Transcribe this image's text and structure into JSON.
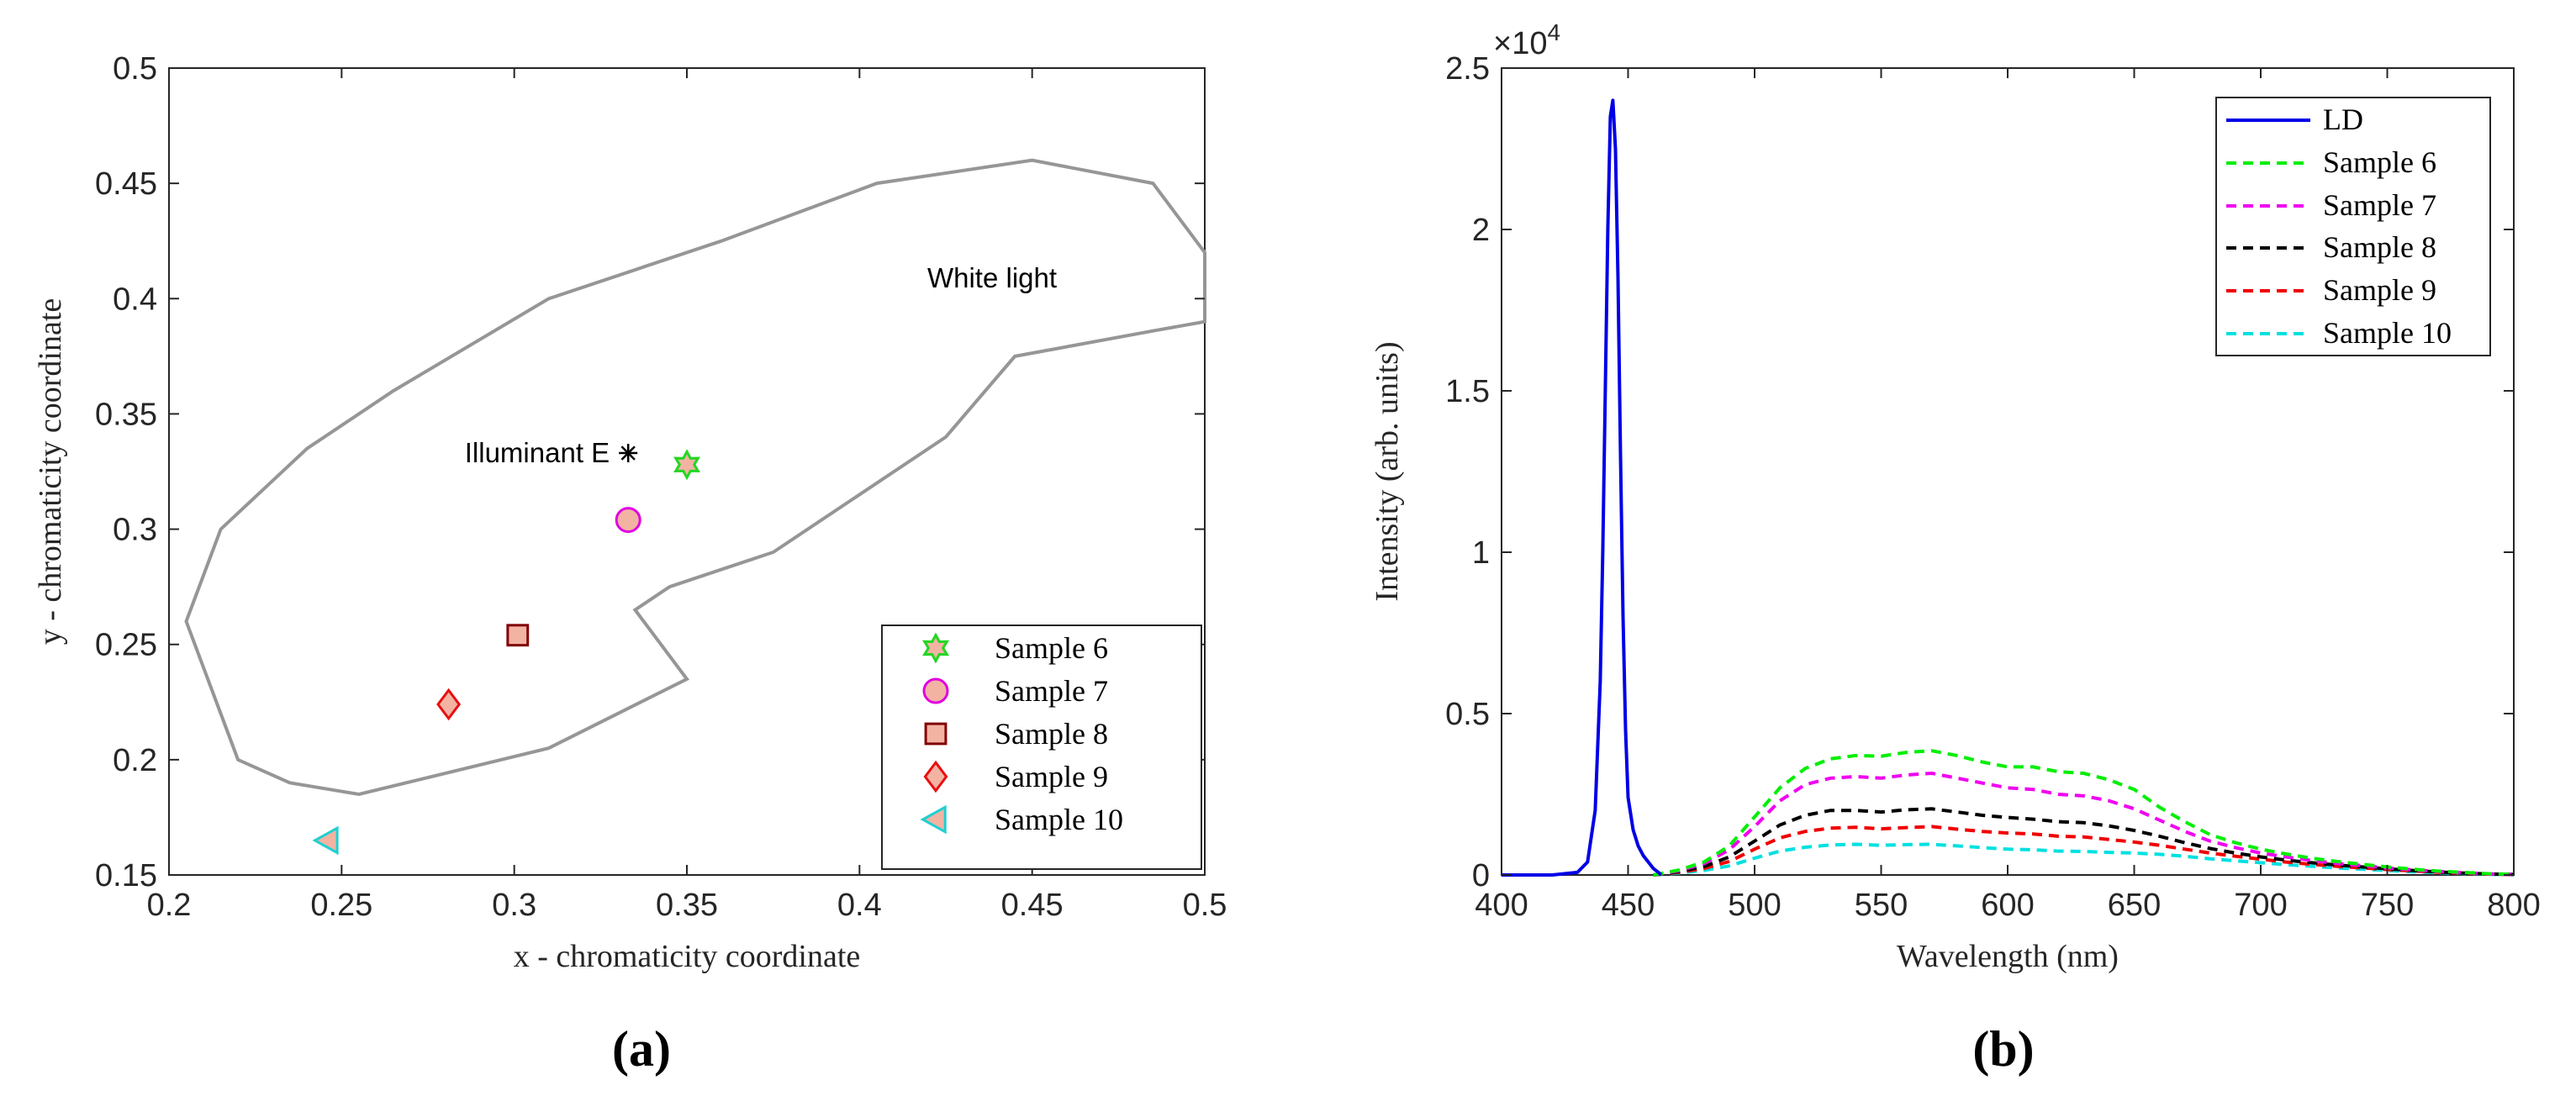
{
  "chart_data": [
    {
      "panel": "a",
      "type": "scatter",
      "xlabel": "x - chromaticity coordinate",
      "ylabel": "y - chromaticity coordinate",
      "xlim": [
        0.2,
        0.5
      ],
      "ylim": [
        0.15,
        0.5
      ],
      "xticks": [
        "0.2",
        "0.25",
        "0.3",
        "0.35",
        "0.4",
        "0.45",
        "0.5"
      ],
      "yticks": [
        "0.15",
        "0.2",
        "0.25",
        "0.3",
        "0.35",
        "0.4",
        "0.45",
        "0.5"
      ],
      "region_label": "White light",
      "region_color": "#969696",
      "region_boundary": [
        [
          0.5,
          0.42
        ],
        [
          0.485,
          0.45
        ],
        [
          0.45,
          0.46
        ],
        [
          0.405,
          0.45
        ],
        [
          0.36,
          0.425
        ],
        [
          0.31,
          0.4
        ],
        [
          0.265,
          0.36
        ],
        [
          0.24,
          0.335
        ],
        [
          0.215,
          0.3
        ],
        [
          0.205,
          0.26
        ],
        [
          0.22,
          0.2
        ],
        [
          0.235,
          0.19
        ],
        [
          0.255,
          0.185
        ],
        [
          0.31,
          0.205
        ],
        [
          0.35,
          0.235
        ],
        [
          0.335,
          0.265
        ],
        [
          0.345,
          0.275
        ],
        [
          0.375,
          0.29
        ],
        [
          0.425,
          0.34
        ],
        [
          0.445,
          0.375
        ],
        [
          0.485,
          0.386
        ],
        [
          0.5,
          0.39
        ]
      ],
      "reference_point": {
        "label": "Illuminant E",
        "x": 0.333,
        "y": 0.333,
        "symbol": "asterisk"
      },
      "series": [
        {
          "name": "Sample 6",
          "x": 0.35,
          "y": 0.328,
          "marker": "hexagram",
          "edge": "#22d622",
          "face": "#f2b3a3"
        },
        {
          "name": "Sample 7",
          "x": 0.333,
          "y": 0.304,
          "marker": "circle",
          "edge": "#e000e0",
          "face": "#f2b3a3"
        },
        {
          "name": "Sample 8",
          "x": 0.301,
          "y": 0.254,
          "marker": "square",
          "edge": "#800000",
          "face": "#f2b3a3"
        },
        {
          "name": "Sample 9",
          "x": 0.281,
          "y": 0.224,
          "marker": "diamond",
          "edge": "#e81010",
          "face": "#f2b3a3"
        },
        {
          "name": "Sample 10",
          "x": 0.246,
          "y": 0.165,
          "marker": "triangle-left",
          "edge": "#20d0d0",
          "face": "#f2b3a3"
        }
      ],
      "legend_position": "bottom-right"
    },
    {
      "panel": "b",
      "type": "line",
      "xlabel": "Wavelength (nm)",
      "ylabel": "Intensity (arb. units)",
      "xlim": [
        400,
        800
      ],
      "ylim": [
        0,
        25000
      ],
      "xticks": [
        "400",
        "450",
        "500",
        "550",
        "600",
        "650",
        "700",
        "750",
        "800"
      ],
      "yticks": [
        "0",
        "0.5",
        "1",
        "1.5",
        "2",
        "2.5"
      ],
      "exponent_label": "×10",
      "exponent_power": "4",
      "x": [
        460,
        470,
        480,
        490,
        500,
        510,
        520,
        530,
        540,
        550,
        560,
        570,
        580,
        590,
        600,
        610,
        620,
        630,
        640,
        650,
        660,
        670,
        680,
        690,
        700,
        710,
        720,
        730,
        740,
        750,
        760,
        770,
        780,
        790,
        800
      ],
      "ld_series": {
        "name": "LD",
        "color": "#0000e6",
        "style": "solid",
        "x": [
          400,
          420,
          430,
          434,
          437,
          439,
          440,
          441,
          442,
          443,
          444,
          445,
          446,
          447,
          448,
          449,
          450,
          452,
          454,
          456,
          458,
          460,
          462,
          463
        ],
        "y": [
          0,
          0,
          80,
          400,
          2000,
          6000,
          10000,
          15000,
          20000,
          23500,
          24000,
          22500,
          18500,
          13000,
          8000,
          4500,
          2400,
          1400,
          900,
          600,
          400,
          200,
          80,
          0
        ]
      },
      "series": [
        {
          "name": "Sample 6",
          "color": "#00ee00",
          "style": "dashed",
          "values": [
            0,
            150,
            400,
            900,
            1800,
            2700,
            3300,
            3600,
            3700,
            3680,
            3800,
            3850,
            3700,
            3500,
            3350,
            3350,
            3200,
            3150,
            2950,
            2650,
            2100,
            1650,
            1250,
            1000,
            800,
            650,
            520,
            420,
            330,
            250,
            180,
            120,
            80,
            40,
            20
          ]
        },
        {
          "name": "Sample 7",
          "color": "#f000f0",
          "style": "dashed",
          "values": [
            0,
            130,
            350,
            780,
            1500,
            2300,
            2800,
            3000,
            3050,
            3000,
            3100,
            3150,
            3000,
            2850,
            2700,
            2650,
            2500,
            2450,
            2300,
            2050,
            1700,
            1350,
            1050,
            850,
            680,
            560,
            450,
            360,
            290,
            220,
            160,
            110,
            70,
            35,
            15
          ]
        },
        {
          "name": "Sample 8",
          "color": "#000000",
          "style": "dashed",
          "values": [
            0,
            100,
            260,
            560,
            1050,
            1550,
            1850,
            2000,
            2000,
            1950,
            2020,
            2050,
            1950,
            1850,
            1780,
            1730,
            1650,
            1620,
            1520,
            1380,
            1200,
            1000,
            820,
            680,
            560,
            460,
            380,
            310,
            250,
            190,
            140,
            95,
            60,
            30,
            15
          ]
        },
        {
          "name": "Sample 9",
          "color": "#f00000",
          "style": "dashed",
          "values": [
            0,
            80,
            200,
            420,
            800,
            1150,
            1350,
            1450,
            1480,
            1430,
            1470,
            1500,
            1420,
            1350,
            1300,
            1270,
            1200,
            1180,
            1100,
            1020,
            920,
            800,
            680,
            580,
            490,
            400,
            330,
            270,
            220,
            170,
            125,
            85,
            55,
            28,
            12
          ]
        },
        {
          "name": "Sample 10",
          "color": "#00e0e0",
          "style": "dashed",
          "values": [
            0,
            60,
            140,
            280,
            520,
            740,
            860,
            930,
            950,
            920,
            940,
            950,
            900,
            850,
            800,
            780,
            740,
            730,
            700,
            680,
            640,
            580,
            500,
            440,
            380,
            320,
            270,
            220,
            180,
            140,
            100,
            70,
            45,
            22,
            10
          ]
        }
      ],
      "legend_position": "top-right"
    }
  ],
  "captions": {
    "a": "(a)",
    "b": "(b)"
  }
}
